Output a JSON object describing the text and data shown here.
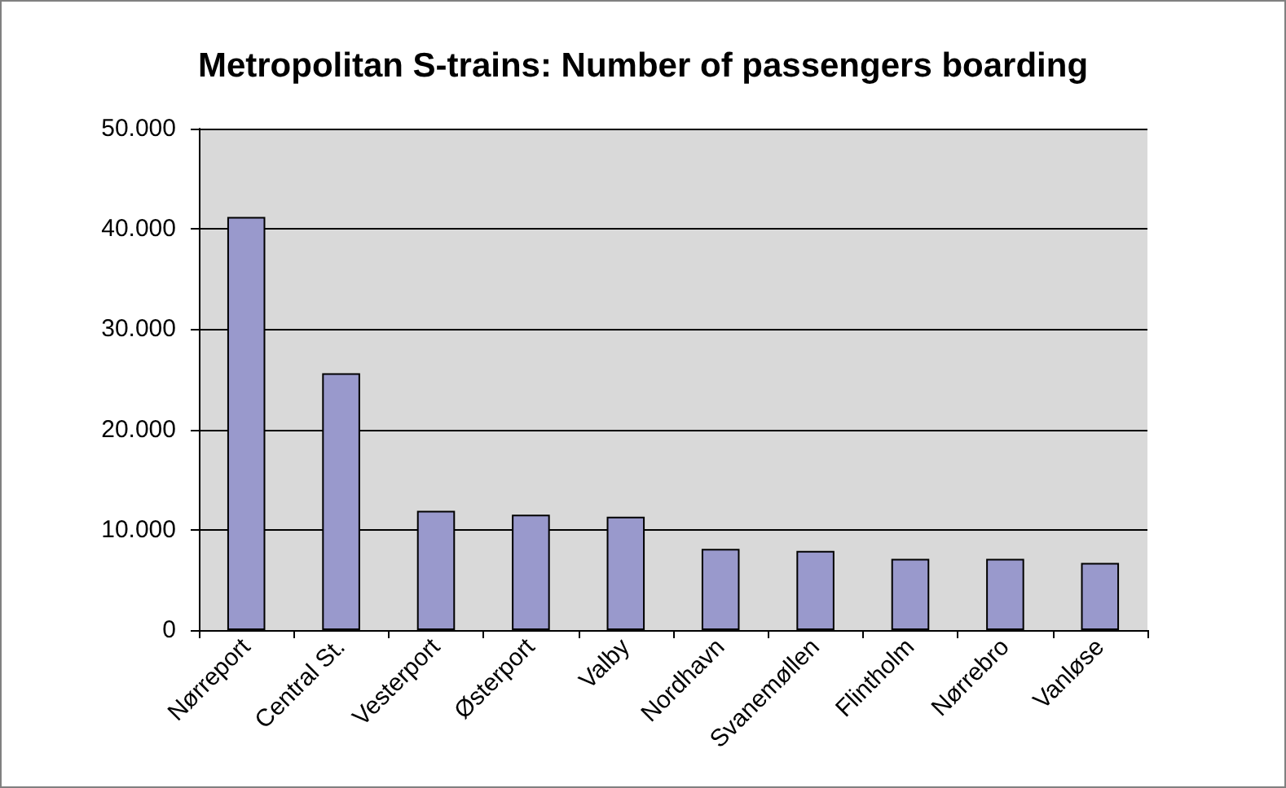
{
  "chart_data": {
    "type": "bar",
    "title": "Metropolitan S-trains: Number of passengers boarding",
    "categories": [
      "Nørreport",
      "Central St.",
      "Vesterport",
      "Østerport",
      "Valby",
      "Nordhavn",
      "Svanemøllen",
      "Flintholm",
      "Nørrebro",
      "Vanløse"
    ],
    "values": [
      41200,
      25600,
      11900,
      11500,
      11300,
      8100,
      7900,
      7100,
      7100,
      6700
    ],
    "color": "#9999cc",
    "ylim": [
      0,
      50000
    ],
    "yticks": [
      0,
      {
        "value": 10000,
        "label": "10.000"
      },
      {
        "value": 20000,
        "label": "20.000"
      },
      {
        "value": 30000,
        "label": "30.000"
      },
      {
        "value": 40000,
        "label": "40.000"
      },
      {
        "value": 50000,
        "label": "50.000"
      }
    ],
    "grid": "y"
  }
}
